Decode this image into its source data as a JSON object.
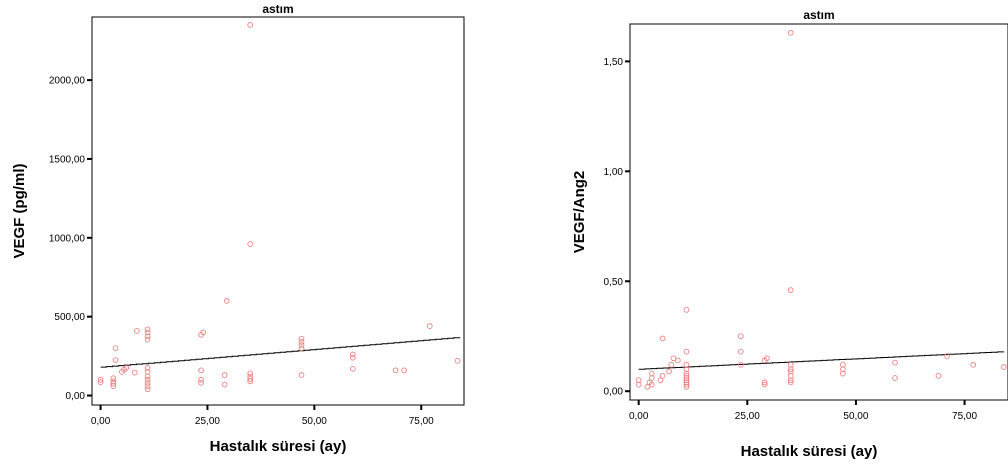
{
  "chart_data": [
    {
      "type": "scatter",
      "title": "astım",
      "xlabel": "Hastalık süresi (ay)",
      "ylabel": "VEGF (pg/ml)",
      "xlim": [
        -2,
        85
      ],
      "ylim": [
        -60,
        2400
      ],
      "xticks": [
        0,
        25,
        50,
        75
      ],
      "xtick_labels": [
        "0,00",
        "25,00",
        "50,00",
        "75,00"
      ],
      "yticks": [
        0,
        500,
        1000,
        1500,
        2000
      ],
      "ytick_labels": [
        "0,00",
        "500,00",
        "1000,00",
        "1500,00",
        "2000,00"
      ],
      "grid": false,
      "marker_color": "#f08080",
      "fit_line": {
        "x": [
          0,
          84
        ],
        "y": [
          180,
          370
        ]
      },
      "points": [
        {
          "x": 0,
          "y": 85
        },
        {
          "x": 0,
          "y": 100
        },
        {
          "x": 3,
          "y": 60
        },
        {
          "x": 3,
          "y": 75
        },
        {
          "x": 3,
          "y": 90
        },
        {
          "x": 3,
          "y": 110
        },
        {
          "x": 3.5,
          "y": 225
        },
        {
          "x": 3.5,
          "y": 300
        },
        {
          "x": 5,
          "y": 150
        },
        {
          "x": 5.5,
          "y": 165
        },
        {
          "x": 6,
          "y": 175
        },
        {
          "x": 8,
          "y": 145
        },
        {
          "x": 8.5,
          "y": 410
        },
        {
          "x": 11,
          "y": 40
        },
        {
          "x": 11,
          "y": 60
        },
        {
          "x": 11,
          "y": 80
        },
        {
          "x": 11,
          "y": 100
        },
        {
          "x": 11,
          "y": 120
        },
        {
          "x": 11,
          "y": 150
        },
        {
          "x": 11,
          "y": 175
        },
        {
          "x": 11,
          "y": 355
        },
        {
          "x": 11,
          "y": 375
        },
        {
          "x": 11,
          "y": 400
        },
        {
          "x": 11,
          "y": 420
        },
        {
          "x": 23.5,
          "y": 80
        },
        {
          "x": 23.5,
          "y": 100
        },
        {
          "x": 23.5,
          "y": 160
        },
        {
          "x": 23.5,
          "y": 385
        },
        {
          "x": 24,
          "y": 400
        },
        {
          "x": 29,
          "y": 70
        },
        {
          "x": 29,
          "y": 130
        },
        {
          "x": 29.5,
          "y": 600
        },
        {
          "x": 35,
          "y": 90
        },
        {
          "x": 35,
          "y": 105
        },
        {
          "x": 35,
          "y": 120
        },
        {
          "x": 35,
          "y": 140
        },
        {
          "x": 35,
          "y": 960
        },
        {
          "x": 35,
          "y": 2350
        },
        {
          "x": 47,
          "y": 130
        },
        {
          "x": 47,
          "y": 300
        },
        {
          "x": 47,
          "y": 320
        },
        {
          "x": 47,
          "y": 340
        },
        {
          "x": 47,
          "y": 360
        },
        {
          "x": 59,
          "y": 170
        },
        {
          "x": 59,
          "y": 240
        },
        {
          "x": 59,
          "y": 260
        },
        {
          "x": 69,
          "y": 160
        },
        {
          "x": 71,
          "y": 160
        },
        {
          "x": 77,
          "y": 440
        },
        {
          "x": 83.5,
          "y": 220
        }
      ]
    },
    {
      "type": "scatter",
      "title": "astım",
      "xlabel": "Hastalık süresi (ay)",
      "ylabel": "VEGF/Ang2",
      "xlim": [
        -2,
        85
      ],
      "ylim": [
        -0.04,
        1.67
      ],
      "xticks": [
        0,
        25,
        50,
        75
      ],
      "xtick_labels": [
        "0,00",
        "25,00",
        "50,00",
        "75,00"
      ],
      "yticks": [
        0,
        0.5,
        1,
        1.5
      ],
      "ytick_labels": [
        "0,00",
        "0,50",
        "1,00",
        "1,50"
      ],
      "grid": false,
      "marker_color": "#f08080",
      "fit_line": {
        "x": [
          0,
          84
        ],
        "y": [
          0.1,
          0.18
        ]
      },
      "points": [
        {
          "x": 0,
          "y": 0.03
        },
        {
          "x": 0,
          "y": 0.05
        },
        {
          "x": 2,
          "y": 0.02
        },
        {
          "x": 2.5,
          "y": 0.04
        },
        {
          "x": 3,
          "y": 0.03
        },
        {
          "x": 3,
          "y": 0.06
        },
        {
          "x": 3,
          "y": 0.08
        },
        {
          "x": 5,
          "y": 0.05
        },
        {
          "x": 5.5,
          "y": 0.07
        },
        {
          "x": 5.5,
          "y": 0.24
        },
        {
          "x": 7,
          "y": 0.09
        },
        {
          "x": 7.5,
          "y": 0.12
        },
        {
          "x": 8,
          "y": 0.15
        },
        {
          "x": 9,
          "y": 0.14
        },
        {
          "x": 11,
          "y": 0.02
        },
        {
          "x": 11,
          "y": 0.03
        },
        {
          "x": 11,
          "y": 0.04
        },
        {
          "x": 11,
          "y": 0.05
        },
        {
          "x": 11,
          "y": 0.06
        },
        {
          "x": 11,
          "y": 0.07
        },
        {
          "x": 11,
          "y": 0.08
        },
        {
          "x": 11,
          "y": 0.1
        },
        {
          "x": 11,
          "y": 0.12
        },
        {
          "x": 11,
          "y": 0.18
        },
        {
          "x": 11,
          "y": 0.37
        },
        {
          "x": 23.5,
          "y": 0.12
        },
        {
          "x": 23.5,
          "y": 0.18
        },
        {
          "x": 23.5,
          "y": 0.25
        },
        {
          "x": 29,
          "y": 0.03
        },
        {
          "x": 29,
          "y": 0.04
        },
        {
          "x": 29,
          "y": 0.14
        },
        {
          "x": 29.5,
          "y": 0.15
        },
        {
          "x": 35,
          "y": 0.04
        },
        {
          "x": 35,
          "y": 0.05
        },
        {
          "x": 35,
          "y": 0.07
        },
        {
          "x": 35,
          "y": 0.09
        },
        {
          "x": 35,
          "y": 0.1
        },
        {
          "x": 35,
          "y": 0.12
        },
        {
          "x": 35,
          "y": 0.46
        },
        {
          "x": 35,
          "y": 1.63
        },
        {
          "x": 47,
          "y": 0.08
        },
        {
          "x": 47,
          "y": 0.1
        },
        {
          "x": 47,
          "y": 0.12
        },
        {
          "x": 59,
          "y": 0.06
        },
        {
          "x": 59,
          "y": 0.13
        },
        {
          "x": 69,
          "y": 0.07
        },
        {
          "x": 71,
          "y": 0.16
        },
        {
          "x": 77,
          "y": 0.12
        },
        {
          "x": 84,
          "y": 0.11
        }
      ]
    }
  ]
}
